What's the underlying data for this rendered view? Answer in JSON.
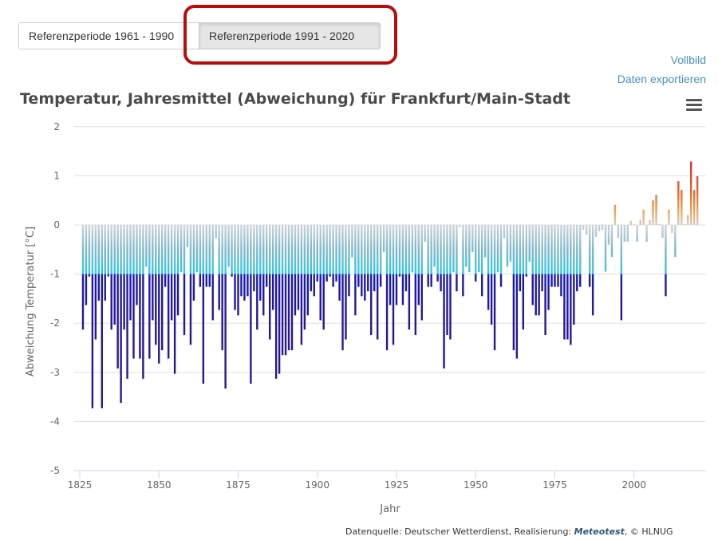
{
  "controls": {
    "period_1961": "Referenzperiode 1961 - 1990",
    "period_1991": "Referenzperiode 1991 - 2020",
    "fullscreen": "Vollbild",
    "export": "Daten exportieren"
  },
  "credit": {
    "prefix": "Datenquelle: Deutscher Wetterdienst, Realisierung: ",
    "brand": "Meteotest",
    "suffix": ", © HLNUG"
  },
  "chart_data": {
    "type": "bar",
    "title": "Temperatur, Jahresmittel (Abweichung) für Frankfurt/Main-Stadt",
    "xlabel": "Jahr",
    "ylabel": "Abweichung Temperatur [°C]",
    "ylim": [
      -5,
      2
    ],
    "yticks": [
      2,
      1,
      0,
      -1,
      -2,
      -3,
      -4,
      -5
    ],
    "xticks": [
      1825,
      1850,
      1875,
      1900,
      1925,
      1950,
      1975,
      2000
    ],
    "xlim": [
      1825,
      2022
    ],
    "grid": true,
    "start_year": 1826,
    "colors": {
      "hot": "#d73027",
      "warm": "#e9a35a",
      "neutral": "#c9d3da",
      "cool": "#35c6e0",
      "cold": "#2a1590"
    },
    "values": [
      -2.13,
      -1.63,
      -1.05,
      -3.73,
      -2.33,
      -1.54,
      -3.73,
      -1.54,
      -1.05,
      -2.13,
      -2.03,
      -2.92,
      -3.62,
      -2.13,
      -3.13,
      -1.94,
      -2.72,
      -1.63,
      -2.72,
      -3.13,
      -0.85,
      -2.72,
      -1.94,
      -2.44,
      -2.82,
      -2.55,
      -1.26,
      -2.72,
      -1.94,
      -3.03,
      -1.84,
      -0.96,
      -2.24,
      -0.45,
      -2.44,
      -1.54,
      -0.96,
      -1.26,
      -3.23,
      -1.26,
      -1.26,
      -1.94,
      -0.27,
      -1.73,
      -2.55,
      -3.33,
      -0.85,
      -1.05,
      -1.73,
      -1.84,
      -1.45,
      -1.54,
      -1.45,
      -3.23,
      -1.35,
      -2.13,
      -1.54,
      -1.84,
      -1.26,
      -2.33,
      -1.73,
      -3.13,
      -3.03,
      -2.65,
      -2.65,
      -2.55,
      -2.55,
      -1.84,
      -1.73,
      -2.44,
      -2.13,
      -1.84,
      -1.35,
      -1.45,
      -1.15,
      -1.94,
      -2.13,
      -1.15,
      -1.05,
      -1.26,
      -1.15,
      -1.54,
      -2.55,
      -2.33,
      -1.45,
      -0.66,
      -1.84,
      -1.26,
      -1.45,
      -1.54,
      -1.35,
      -2.24,
      -1.35,
      -2.33,
      -1.26,
      -0.55,
      -2.55,
      -1.63,
      -2.44,
      -1.63,
      -1.05,
      -1.63,
      -1.35,
      -2.13,
      -0.96,
      -2.24,
      -1.63,
      -1.94,
      -0.34,
      -1.26,
      -1.26,
      -0.85,
      -1.15,
      -1.35,
      -2.92,
      -2.24,
      -2.33,
      -0.96,
      -1.35,
      -0.05,
      -1.45,
      -0.85,
      -0.96,
      -0.55,
      -1.15,
      -0.96,
      -1.45,
      -0.66,
      -1.73,
      -2.03,
      -2.55,
      -0.96,
      -1.26,
      -0.27,
      -0.85,
      -0.75,
      -2.55,
      -2.72,
      -1.35,
      -2.13,
      -1.05,
      -0.75,
      -1.63,
      -1.84,
      -1.84,
      -1.35,
      -2.24,
      -1.73,
      -1.26,
      -1.26,
      -1.26,
      -1.45,
      -2.33,
      -2.33,
      -2.44,
      -2.03,
      -1.35,
      -1.26,
      -0.1,
      -0.2,
      -1.26,
      -1.84,
      -0.24,
      -0.13,
      -0.1,
      -0.95,
      -0.4,
      -0.65,
      0.41,
      -0.26,
      -1.94,
      -0.34,
      -0.34,
      0.08,
      0.02,
      -0.34,
      0.1,
      0.31,
      -0.34,
      0.1,
      0.5,
      0.61,
      0.02,
      -0.26,
      -1.45,
      0.31,
      -0.16,
      -0.65,
      0.89,
      0.71,
      0.02,
      0.2,
      1.29,
      0.71,
      0.99
    ]
  }
}
